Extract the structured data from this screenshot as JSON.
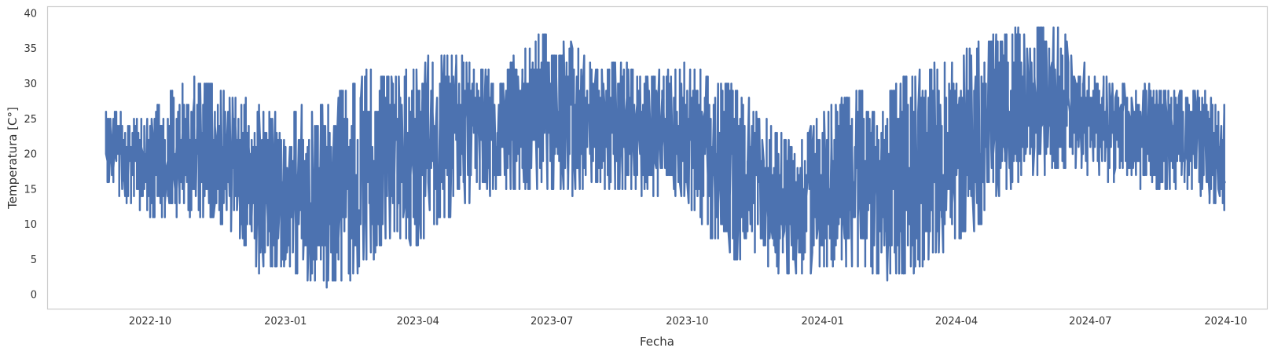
{
  "chart_data": {
    "type": "line",
    "title": "",
    "xlabel": "Fecha",
    "ylabel": "Temperatura [C°]",
    "grid": false,
    "legend": "none",
    "line_color": "#4c72b0",
    "frame_color": "#cccccc",
    "xlim": [
      "2022-07-23",
      "2024-10-29"
    ],
    "ylim": [
      -2,
      41
    ],
    "x_ticks": [
      "2022-10",
      "2023-01",
      "2023-04",
      "2023-07",
      "2023-10",
      "2024-01",
      "2024-04",
      "2024-07",
      "2024-10"
    ],
    "y_ticks": [
      0,
      5,
      10,
      15,
      20,
      25,
      30,
      35,
      40
    ],
    "series": [
      {
        "x": [
          "2022-09-01",
          "2022-09-15",
          "2022-10-01",
          "2022-10-15",
          "2022-11-01",
          "2022-11-15",
          "2022-12-01",
          "2022-12-15",
          "2023-01-01",
          "2023-01-15",
          "2023-02-01",
          "2023-02-15",
          "2023-03-01",
          "2023-03-15",
          "2023-04-01",
          "2023-04-15",
          "2023-05-01",
          "2023-05-15",
          "2023-06-01",
          "2023-06-15",
          "2023-07-01",
          "2023-07-15",
          "2023-08-01",
          "2023-08-15",
          "2023-09-01",
          "2023-09-15",
          "2023-10-01",
          "2023-10-15",
          "2023-11-01",
          "2023-11-15",
          "2023-12-01",
          "2023-12-15",
          "2024-01-01",
          "2024-01-15",
          "2024-02-01",
          "2024-02-15",
          "2024-03-01",
          "2024-03-15",
          "2024-04-01",
          "2024-04-15",
          "2024-05-01",
          "2024-05-15",
          "2024-06-01",
          "2024-06-15",
          "2024-07-01",
          "2024-07-15",
          "2024-08-01",
          "2024-08-15",
          "2024-09-01",
          "2024-09-15",
          "2024-10-01"
        ],
        "min": [
          16,
          13,
          11,
          10,
          11,
          10,
          8,
          3,
          4,
          2,
          1,
          2,
          5,
          8,
          7,
          10,
          11,
          14,
          14,
          15,
          15,
          14,
          15,
          15,
          14,
          14,
          13,
          9,
          4,
          5,
          3,
          2,
          3,
          4,
          3,
          2,
          3,
          5,
          7,
          9,
          14,
          16,
          17,
          18,
          17,
          15,
          15,
          15,
          15,
          14,
          12
        ],
        "max": [
          28,
          26,
          25,
          29,
          31,
          30,
          28,
          27,
          25,
          27,
          28,
          30,
          33,
          31,
          33,
          35,
          34,
          32,
          33,
          36,
          38,
          36,
          32,
          34,
          31,
          32,
          33,
          31,
          30,
          27,
          24,
          21,
          26,
          28,
          30,
          29,
          32,
          33,
          34,
          36,
          37,
          38,
          39,
          37,
          32,
          31,
          30,
          30,
          30,
          29,
          27
        ]
      }
    ]
  }
}
